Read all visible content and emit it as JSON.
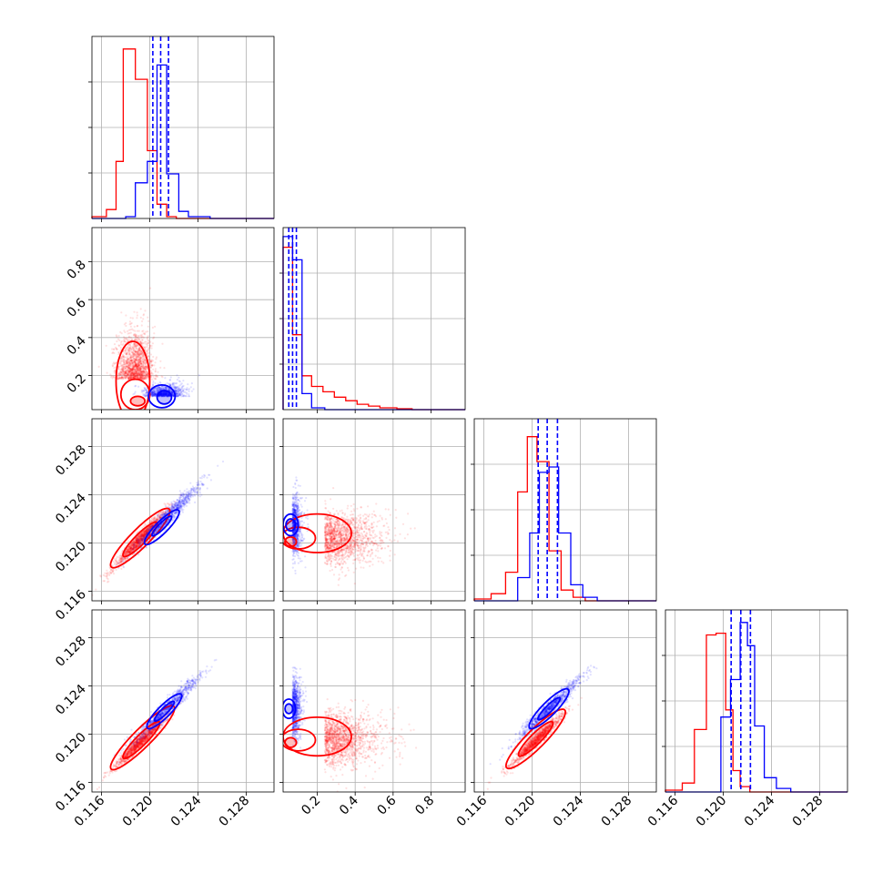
{
  "chart_data": {
    "type": "corner",
    "grid": true,
    "colors": {
      "series_a": "#ff0000",
      "series_b": "#0000ff"
    },
    "series": [
      {
        "color": "#ff0000"
      },
      {
        "color": "#0000ff"
      }
    ],
    "params": [
      {
        "range": [
          0.1152,
          0.1303
        ],
        "ticks": [
          0.116,
          0.12,
          0.124,
          0.128
        ],
        "tick_labels": [
          "0.116",
          "0.120",
          "0.124",
          "0.128"
        ]
      },
      {
        "range": [
          0.02,
          0.98
        ],
        "ticks": [
          0.2,
          0.4,
          0.6,
          0.8
        ],
        "tick_labels": [
          "0.2",
          "0.4",
          "0.6",
          "0.8"
        ]
      },
      {
        "range": [
          0.1152,
          0.1303
        ],
        "ticks": [
          0.116,
          0.12,
          0.124,
          0.128
        ],
        "tick_labels": [
          "0.116",
          "0.120",
          "0.124",
          "0.128"
        ]
      },
      {
        "range": [
          0.1152,
          0.1303
        ],
        "ticks": [
          0.116,
          0.12,
          0.124,
          0.128
        ],
        "tick_labels": [
          "0.116",
          "0.120",
          "0.124",
          "0.128"
        ]
      }
    ],
    "histograms": [
      {
        "param": 0,
        "ymax": 1.0,
        "red_bins": [
          [
            0.1152,
            0.01
          ],
          [
            0.1164,
            0.05
          ],
          [
            0.1172,
            0.32
          ],
          [
            0.1178,
            0.95
          ],
          [
            0.1188,
            0.78
          ],
          [
            0.1198,
            0.38
          ],
          [
            0.1206,
            0.08
          ],
          [
            0.1214,
            0.01
          ],
          [
            0.1222,
            0.0
          ]
        ],
        "blue_bins": [
          [
            0.1152,
            0.0
          ],
          [
            0.118,
            0.01
          ],
          [
            0.1188,
            0.2
          ],
          [
            0.1198,
            0.32
          ],
          [
            0.1206,
            0.86
          ],
          [
            0.1214,
            0.25
          ],
          [
            0.1224,
            0.04
          ],
          [
            0.1232,
            0.01
          ],
          [
            0.125,
            0.0
          ]
        ],
        "blue_quantiles": [
          0.12025,
          0.1209,
          0.12155
        ]
      },
      {
        "param": 1,
        "ymax": 1.0,
        "red_bins": [
          [
            0.02,
            0.91
          ],
          [
            0.07,
            0.42
          ],
          [
            0.12,
            0.19
          ],
          [
            0.17,
            0.13
          ],
          [
            0.23,
            0.1
          ],
          [
            0.29,
            0.07
          ],
          [
            0.35,
            0.05
          ],
          [
            0.41,
            0.03
          ],
          [
            0.47,
            0.02
          ],
          [
            0.53,
            0.01
          ],
          [
            0.62,
            0.005
          ],
          [
            0.7,
            0.0
          ]
        ],
        "blue_bins": [
          [
            0.02,
            0.97
          ],
          [
            0.07,
            0.84
          ],
          [
            0.12,
            0.09
          ],
          [
            0.17,
            0.01
          ],
          [
            0.24,
            0.0
          ]
        ],
        "blue_quantiles": [
          0.05,
          0.07,
          0.09
        ]
      },
      {
        "param": 2,
        "ymax": 1.0,
        "red_bins": [
          [
            0.1152,
            0.01
          ],
          [
            0.1166,
            0.04
          ],
          [
            0.1178,
            0.16
          ],
          [
            0.1188,
            0.61
          ],
          [
            0.1196,
            0.92
          ],
          [
            0.1204,
            0.78
          ],
          [
            0.1214,
            0.28
          ],
          [
            0.1224,
            0.06
          ],
          [
            0.1234,
            0.02
          ],
          [
            0.1244,
            0.0
          ]
        ],
        "blue_bins": [
          [
            0.1152,
            0.0
          ],
          [
            0.1188,
            0.13
          ],
          [
            0.1198,
            0.38
          ],
          [
            0.1206,
            0.72
          ],
          [
            0.1214,
            0.75
          ],
          [
            0.1222,
            0.38
          ],
          [
            0.1232,
            0.09
          ],
          [
            0.1242,
            0.02
          ],
          [
            0.1254,
            0.0
          ]
        ],
        "blue_quantiles": [
          0.1205,
          0.12125,
          0.1221
        ]
      },
      {
        "param": 3,
        "ymax": 1.0,
        "red_bins": [
          [
            0.1152,
            0.01
          ],
          [
            0.1166,
            0.05
          ],
          [
            0.1176,
            0.35
          ],
          [
            0.1186,
            0.88
          ],
          [
            0.1194,
            0.89
          ],
          [
            0.1202,
            0.46
          ],
          [
            0.1208,
            0.12
          ],
          [
            0.1214,
            0.03
          ],
          [
            0.1222,
            0.0
          ]
        ],
        "blue_bins": [
          [
            0.1152,
            0.0
          ],
          [
            0.1198,
            0.42
          ],
          [
            0.1206,
            0.63
          ],
          [
            0.1214,
            0.95
          ],
          [
            0.122,
            0.82
          ],
          [
            0.1226,
            0.37
          ],
          [
            0.1234,
            0.08
          ],
          [
            0.1244,
            0.02
          ],
          [
            0.1256,
            0.0
          ]
        ],
        "blue_quantiles": [
          0.12065,
          0.12145,
          0.12225
        ]
      }
    ],
    "scatter_panels": [
      {
        "x_param": 0,
        "y_param": 1,
        "red": {
          "cx": 0.1188,
          "sx": 0.00075,
          "cy": 0.18,
          "sy": 0.14,
          "rho": 0.0,
          "n": 1500
        },
        "blue": {
          "cx": 0.1212,
          "sx": 0.0008,
          "cy": 0.09,
          "sy": 0.035,
          "rho": 0.3,
          "n": 1000
        },
        "red_contours": [
          {
            "cx": 0.1186,
            "cy": 0.17,
            "rx": 0.0014,
            "ry": 0.21,
            "rot": 0.0
          },
          {
            "cx": 0.1188,
            "cy": 0.1,
            "rx": 0.0012,
            "ry": 0.08,
            "rot": 0.0
          },
          {
            "cx": 0.119,
            "cy": 0.065,
            "rx": 0.0006,
            "ry": 0.025,
            "rot": 0.0
          }
        ],
        "blue_contours": [
          {
            "cx": 0.121,
            "cy": 0.09,
            "rx": 0.0011,
            "ry": 0.06,
            "rot": 0.0
          },
          {
            "cx": 0.1212,
            "cy": 0.085,
            "rx": 0.0006,
            "ry": 0.035,
            "rot": 0.0
          }
        ]
      },
      {
        "x_param": 0,
        "y_param": 2,
        "red": {
          "cx": 0.1192,
          "sx": 0.0011,
          "cy": 0.1203,
          "sy": 0.0012,
          "rho": 0.97,
          "n": 1200
        },
        "blue": {
          "cx": 0.1215,
          "sx": 0.0014,
          "cy": 0.1222,
          "sy": 0.0014,
          "rho": 0.97,
          "n": 1000
        },
        "red_contours": [
          {
            "cx": 0.1192,
            "cy": 0.1204,
            "rx": 0.0024,
            "ry": 0.0006,
            "rot": 0.75
          },
          {
            "cx": 0.1192,
            "cy": 0.1203,
            "rx": 0.0014,
            "ry": 0.00035,
            "rot": 0.75
          }
        ],
        "blue_contours": [
          {
            "cx": 0.121,
            "cy": 0.1213,
            "rx": 0.0014,
            "ry": 0.0004,
            "rot": 0.75
          },
          {
            "cx": 0.121,
            "cy": 0.1214,
            "rx": 0.0008,
            "ry": 0.0002,
            "rot": 0.75
          }
        ]
      },
      {
        "x_param": 1,
        "y_param": 2,
        "red": {
          "cx": 0.24,
          "sx": 0.16,
          "cy": 0.1204,
          "sy": 0.0011,
          "rho": 0.0,
          "n": 1500
        },
        "blue": {
          "cx": 0.07,
          "sx": 0.025,
          "cy": 0.1214,
          "sy": 0.0012,
          "rho": 0.0,
          "n": 900
        },
        "red_contours": [
          {
            "cx": 0.2,
            "cy": 0.1208,
            "rx": 0.18,
            "ry": 0.0016,
            "rot": 0.0
          },
          {
            "cx": 0.1,
            "cy": 0.1204,
            "rx": 0.09,
            "ry": 0.0009,
            "rot": 0.0
          },
          {
            "cx": 0.06,
            "cy": 0.1201,
            "rx": 0.03,
            "ry": 0.0004,
            "rot": 0.0
          }
        ],
        "blue_contours": [
          {
            "cx": 0.06,
            "cy": 0.1215,
            "rx": 0.04,
            "ry": 0.0009,
            "rot": 0.0
          },
          {
            "cx": 0.06,
            "cy": 0.1215,
            "rx": 0.025,
            "ry": 0.0005,
            "rot": 0.0
          }
        ]
      },
      {
        "x_param": 0,
        "y_param": 3,
        "red": {
          "cx": 0.1192,
          "sx": 0.0011,
          "cy": 0.1193,
          "sy": 0.0011,
          "rho": 0.97,
          "n": 1200
        },
        "blue": {
          "cx": 0.1215,
          "sx": 0.0014,
          "cy": 0.1222,
          "sy": 0.0014,
          "rho": 0.97,
          "n": 1000
        },
        "red_contours": [
          {
            "cx": 0.1194,
            "cy": 0.1197,
            "rx": 0.0026,
            "ry": 0.0006,
            "rot": 0.75
          },
          {
            "cx": 0.1193,
            "cy": 0.1195,
            "rx": 0.0015,
            "ry": 0.00035,
            "rot": 0.75
          }
        ],
        "blue_contours": [
          {
            "cx": 0.1212,
            "cy": 0.1219,
            "rx": 0.0014,
            "ry": 0.0004,
            "rot": 0.75
          },
          {
            "cx": 0.1212,
            "cy": 0.1219,
            "rx": 0.0008,
            "ry": 0.0002,
            "rot": 0.75
          }
        ]
      },
      {
        "x_param": 1,
        "y_param": 3,
        "red": {
          "cx": 0.24,
          "sx": 0.16,
          "cy": 0.1196,
          "sy": 0.0011,
          "rho": 0.0,
          "n": 1500
        },
        "blue": {
          "cx": 0.07,
          "sx": 0.025,
          "cy": 0.1222,
          "sy": 0.0012,
          "rho": 0.0,
          "n": 900
        },
        "red_contours": [
          {
            "cx": 0.2,
            "cy": 0.1198,
            "rx": 0.18,
            "ry": 0.0016,
            "rot": 0.0
          },
          {
            "cx": 0.1,
            "cy": 0.1195,
            "rx": 0.09,
            "ry": 0.0009,
            "rot": 0.0
          },
          {
            "cx": 0.06,
            "cy": 0.1193,
            "rx": 0.03,
            "ry": 0.0004,
            "rot": 0.0
          }
        ],
        "blue_contours": [
          {
            "cx": 0.05,
            "cy": 0.1221,
            "rx": 0.035,
            "ry": 0.0008,
            "rot": 0.0
          },
          {
            "cx": 0.05,
            "cy": 0.1221,
            "rx": 0.02,
            "ry": 0.0004,
            "rot": 0.0
          }
        ]
      },
      {
        "x_param": 2,
        "y_param": 3,
        "red": {
          "cx": 0.1204,
          "sx": 0.0011,
          "cy": 0.1195,
          "sy": 0.0011,
          "rho": 0.97,
          "n": 1200
        },
        "blue": {
          "cx": 0.1215,
          "sx": 0.0014,
          "cy": 0.1222,
          "sy": 0.0014,
          "rho": 0.97,
          "n": 1000
        },
        "red_contours": [
          {
            "cx": 0.1203,
            "cy": 0.1196,
            "rx": 0.0024,
            "ry": 0.0006,
            "rot": 0.75
          },
          {
            "cx": 0.1203,
            "cy": 0.1196,
            "rx": 0.0014,
            "ry": 0.00035,
            "rot": 0.75
          }
        ],
        "blue_contours": [
          {
            "cx": 0.1214,
            "cy": 0.1221,
            "rx": 0.0016,
            "ry": 0.00045,
            "rot": 0.75
          },
          {
            "cx": 0.1214,
            "cy": 0.1221,
            "rx": 0.0009,
            "ry": 0.00022,
            "rot": 0.75
          }
        ]
      }
    ]
  }
}
